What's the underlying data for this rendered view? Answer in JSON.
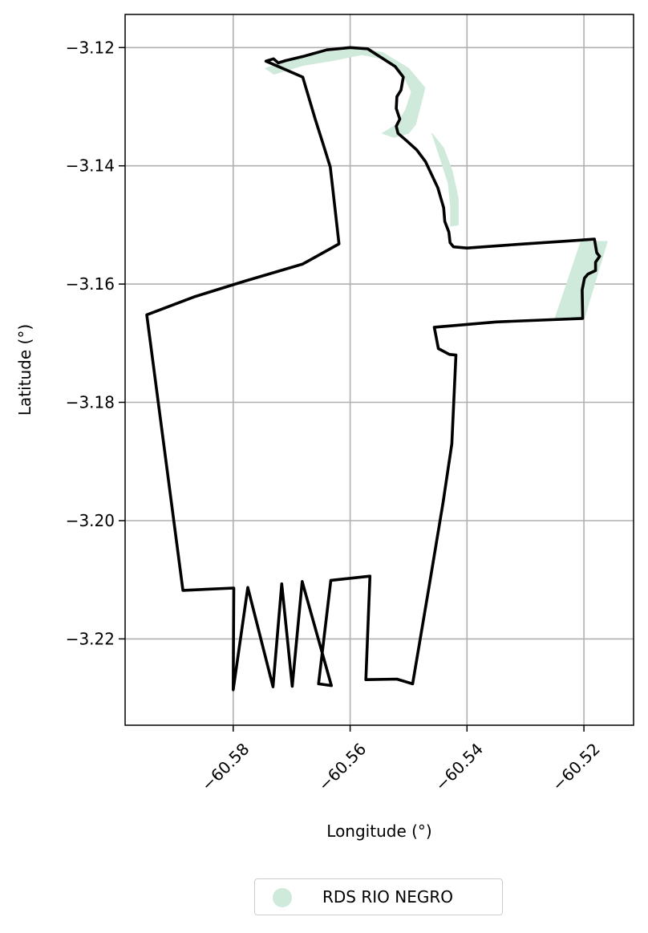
{
  "axes": {
    "xlabel": "Longitude (°)",
    "ylabel": "Latitude (°)",
    "xlim": [
      -60.5985,
      -60.5115
    ],
    "ylim": [
      -3.2346,
      -3.1144
    ],
    "x_ticks": [
      -60.58,
      -60.56,
      -60.54,
      -60.52
    ],
    "x_tick_labels": [
      "−60.58",
      "−60.56",
      "−60.54",
      "−60.52"
    ],
    "y_ticks": [
      -3.12,
      -3.14,
      -3.16,
      -3.18,
      -3.2,
      -3.22
    ],
    "y_tick_labels": [
      "−3.12",
      "−3.14",
      "−3.16",
      "−3.18",
      "−3.20",
      "−3.22"
    ],
    "grid": true
  },
  "legend": {
    "label": "RDS RIO NEGRO",
    "color": "#cfeadb",
    "placement": "bottom-center"
  },
  "colors": {
    "boundary": "#000000",
    "protected_area": "#cfeadb",
    "grid": "#b0b0b0"
  },
  "protected_area_polygons": [
    [
      [
        -60.5745,
        -3.1235
      ],
      [
        -60.569,
        -3.1218
      ],
      [
        -60.564,
        -3.1208
      ],
      [
        -60.559,
        -3.1202
      ],
      [
        -60.5545,
        -3.1208
      ],
      [
        -60.55,
        -3.1235
      ],
      [
        -60.5472,
        -3.1268
      ],
      [
        -60.548,
        -3.13
      ],
      [
        -60.5488,
        -3.133
      ],
      [
        -60.55,
        -3.1345
      ],
      [
        -60.5525,
        -3.1352
      ],
      [
        -60.5545,
        -3.1345
      ],
      [
        -60.552,
        -3.133
      ],
      [
        -60.5505,
        -3.1305
      ],
      [
        -60.5495,
        -3.1275
      ],
      [
        -60.551,
        -3.1245
      ],
      [
        -60.554,
        -3.122
      ],
      [
        -60.558,
        -3.1212
      ],
      [
        -60.563,
        -3.1222
      ],
      [
        -60.568,
        -3.123
      ],
      [
        -60.573,
        -3.1245
      ]
    ],
    [
      [
        -60.546,
        -3.1345
      ],
      [
        -60.544,
        -3.137
      ],
      [
        -60.5425,
        -3.141
      ],
      [
        -60.5415,
        -3.1455
      ],
      [
        -60.5415,
        -3.15
      ],
      [
        -60.5428,
        -3.1502
      ],
      [
        -60.5428,
        -3.147
      ],
      [
        -60.5432,
        -3.143
      ],
      [
        -60.5445,
        -3.139
      ]
    ],
    [
      [
        -60.516,
        -3.1528
      ],
      [
        -60.5205,
        -3.1528
      ],
      [
        -60.525,
        -3.166
      ],
      [
        -60.52,
        -3.166
      ]
    ]
  ],
  "boundary": [
    [
      -60.5744,
      -3.1223
    ],
    [
      -60.5731,
      -3.1219
    ],
    [
      -60.5723,
      -3.1226
    ],
    [
      -60.571,
      -3.1222
    ],
    [
      -60.568,
      -3.1215
    ],
    [
      -60.564,
      -3.1204
    ],
    [
      -60.56,
      -3.12
    ],
    [
      -60.557,
      -3.1202
    ],
    [
      -60.5545,
      -3.1218
    ],
    [
      -60.5523,
      -3.1232
    ],
    [
      -60.5509,
      -3.125
    ],
    [
      -60.5513,
      -3.1272
    ],
    [
      -60.552,
      -3.1283
    ],
    [
      -60.5521,
      -3.1303
    ],
    [
      -60.5515,
      -3.1321
    ],
    [
      -60.5521,
      -3.1333
    ],
    [
      -60.5518,
      -3.1345
    ],
    [
      -60.5503,
      -3.1358
    ],
    [
      -60.5486,
      -3.1373
    ],
    [
      -60.5471,
      -3.1393
    ],
    [
      -60.545,
      -3.1437
    ],
    [
      -60.544,
      -3.1471
    ],
    [
      -60.5438,
      -3.1494
    ],
    [
      -60.5431,
      -3.1512
    ],
    [
      -60.5429,
      -3.153
    ],
    [
      -60.5423,
      -3.1537
    ],
    [
      -60.54,
      -3.1539
    ],
    [
      -60.5315,
      -3.1533
    ],
    [
      -60.5225,
      -3.1527
    ],
    [
      -60.5182,
      -3.1524
    ],
    [
      -60.5178,
      -3.1547
    ],
    [
      -60.5173,
      -3.1553
    ],
    [
      -60.518,
      -3.1563
    ],
    [
      -60.518,
      -3.1577
    ],
    [
      -60.5193,
      -3.1583
    ],
    [
      -60.5199,
      -3.159
    ],
    [
      -60.5203,
      -3.161
    ],
    [
      -60.5202,
      -3.1658
    ],
    [
      -60.535,
      -3.1664
    ],
    [
      -60.5456,
      -3.1673
    ],
    [
      -60.5449,
      -3.1709
    ],
    [
      -60.543,
      -3.1719
    ],
    [
      -60.5419,
      -3.172
    ],
    [
      -60.5426,
      -3.187
    ],
    [
      -60.5441,
      -3.197
    ],
    [
      -60.5464,
      -3.2106
    ],
    [
      -60.5493,
      -3.2276
    ],
    [
      -60.552,
      -3.2268
    ],
    [
      -60.5573,
      -3.2269
    ],
    [
      -60.5566,
      -3.2094
    ],
    [
      -60.5633,
      -3.2101
    ],
    [
      -60.5654,
      -3.2276
    ],
    [
      -60.5632,
      -3.2279
    ],
    [
      -60.5682,
      -3.2103
    ],
    [
      -60.5699,
      -3.228
    ],
    [
      -60.5717,
      -3.2107
    ],
    [
      -60.5732,
      -3.2281
    ],
    [
      -60.5775,
      -3.2113
    ],
    [
      -60.58,
      -3.2286
    ],
    [
      -60.5799,
      -3.2114
    ],
    [
      -60.5886,
      -3.2118
    ],
    [
      -60.5948,
      -3.1652
    ],
    [
      -60.5865,
      -3.1621
    ],
    [
      -60.578,
      -3.1595
    ],
    [
      -60.5681,
      -3.1566
    ],
    [
      -60.5619,
      -3.1532
    ],
    [
      -60.563,
      -3.1436
    ],
    [
      -60.5634,
      -3.1402
    ],
    [
      -60.5645,
      -3.1367
    ],
    [
      -60.566,
      -3.132
    ],
    [
      -60.5681,
      -3.125
    ]
  ]
}
